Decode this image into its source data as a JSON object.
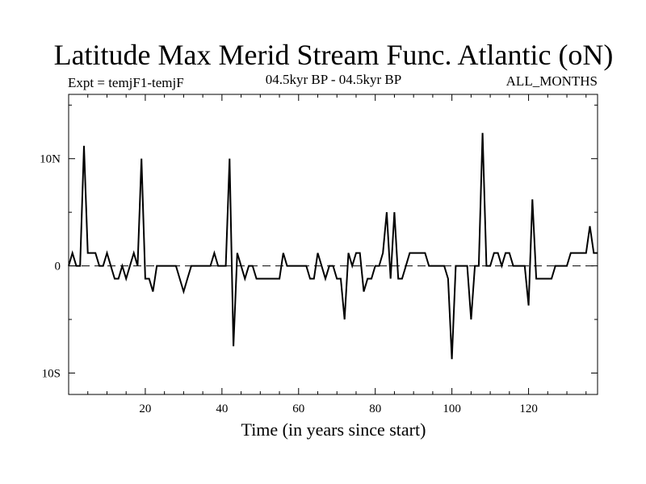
{
  "chart_data": {
    "type": "line",
    "title": "Latitude Max Merid Stream Func. Atlantic (oN)",
    "subtitle_left": "Expt = temjF1-temjF",
    "subtitle_center": "04.5kyr BP - 04.5kyr BP",
    "subtitle_right": "ALL_MONTHS",
    "xlabel": "Time (in years since start)",
    "ylabel": "",
    "xlim": [
      0,
      138
    ],
    "ylim": [
      -12,
      16
    ],
    "x_ticks": [
      20,
      40,
      60,
      80,
      100,
      120
    ],
    "x_tick_labels": [
      "20",
      "40",
      "60",
      "80",
      "100",
      "120"
    ],
    "y_ticks": [
      -10,
      0,
      10
    ],
    "y_tick_labels": [
      "10S",
      "0",
      "10N"
    ],
    "reference_line": {
      "y": 0,
      "style": "dashed"
    },
    "grid": false,
    "series": [
      {
        "x": [
          0,
          1,
          2,
          3,
          4,
          5,
          6,
          7,
          8,
          9,
          10,
          11,
          12,
          13,
          14,
          15,
          16,
          17,
          18,
          19,
          20,
          21,
          22,
          23,
          24,
          25,
          26,
          27,
          28,
          29,
          30,
          31,
          32,
          33,
          34,
          35,
          36,
          37,
          38,
          39,
          40,
          41,
          42,
          43,
          44,
          45,
          46,
          47,
          48,
          49,
          50,
          51,
          52,
          53,
          54,
          55,
          56,
          57,
          58,
          59,
          60,
          61,
          62,
          63,
          64,
          65,
          66,
          67,
          68,
          69,
          70,
          71,
          72,
          73,
          74,
          75,
          76,
          77,
          78,
          79,
          80,
          81,
          82,
          83,
          84,
          85,
          86,
          87,
          88,
          89,
          90,
          91,
          92,
          93,
          94,
          95,
          96,
          97,
          98,
          99,
          100,
          101,
          102,
          103,
          104,
          105,
          106,
          107,
          108,
          109,
          110,
          111,
          112,
          113,
          114,
          115,
          116,
          117,
          118,
          119,
          120,
          121,
          122,
          123,
          124,
          125,
          126,
          127,
          128,
          129,
          130,
          131,
          132,
          133,
          134,
          135,
          136,
          137,
          138
        ],
        "values": [
          0,
          1.2,
          0,
          0,
          11.2,
          1.2,
          1.2,
          1.2,
          0,
          0,
          1.2,
          0,
          -1.2,
          -1.2,
          0,
          -1.2,
          0,
          1.2,
          0,
          10,
          -1.2,
          -1.2,
          -2.4,
          0,
          0,
          0,
          0,
          0,
          0,
          -1.2,
          -2.4,
          -1.2,
          0,
          0,
          0,
          0,
          0,
          0,
          1.2,
          0,
          0,
          0,
          10,
          -7.5,
          1.2,
          0,
          -1.2,
          0,
          0,
          -1.2,
          -1.2,
          -1.2,
          -1.2,
          -1.2,
          -1.2,
          -1.2,
          1.2,
          0,
          0,
          0,
          0,
          0,
          0,
          -1.2,
          -1.2,
          1.2,
          0,
          -1.2,
          0,
          0,
          -1.2,
          -1.2,
          -5,
          1.2,
          0,
          1.2,
          1.2,
          -2.4,
          -1.2,
          -1.2,
          0,
          0,
          1.2,
          5,
          -1.2,
          5,
          -1.2,
          -1.2,
          0,
          1.2,
          1.2,
          1.2,
          1.2,
          1.2,
          0,
          0,
          0,
          0,
          0,
          -1.2,
          -8.7,
          0,
          0,
          0,
          0,
          -5,
          0,
          0,
          12.4,
          0,
          0,
          1.2,
          1.2,
          0,
          1.2,
          1.2,
          0,
          0,
          0,
          0,
          -3.7,
          6.2,
          -1.2,
          -1.2,
          -1.2,
          -1.2,
          -1.2,
          0,
          0,
          0,
          0,
          1.2,
          1.2,
          1.2,
          1.2,
          1.2,
          3.7,
          1.2,
          1.2
        ]
      }
    ]
  }
}
